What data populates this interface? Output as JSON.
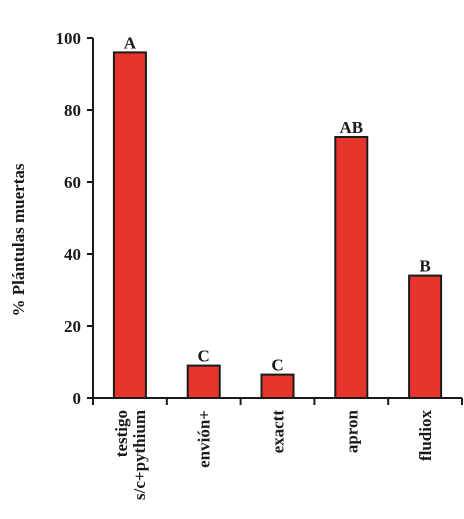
{
  "chart_data": {
    "type": "bar",
    "categories": [
      [
        "testigo",
        "s/c+pythium"
      ],
      [
        "envión+"
      ],
      [
        "exactt"
      ],
      [
        "apron"
      ],
      [
        "fludiox"
      ]
    ],
    "values": [
      96,
      9,
      6.5,
      72.5,
      34
    ],
    "data_labels": [
      "A",
      "C",
      "C",
      "AB",
      "B"
    ],
    "ylabel": "% Plántulas muertas",
    "ylim": [
      0,
      100
    ],
    "yticks": [
      0,
      20,
      40,
      60,
      80,
      100
    ],
    "bar_color": "#e8352b",
    "bar_edge_color": "#1a1a1a",
    "grid": false,
    "legend": "none"
  }
}
